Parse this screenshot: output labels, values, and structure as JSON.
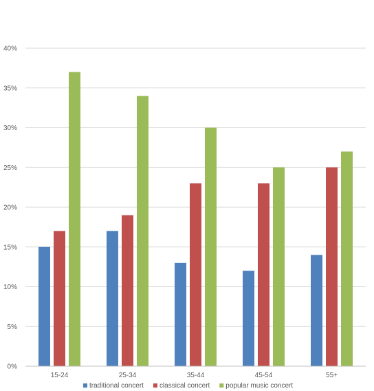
{
  "chart_data": {
    "type": "bar",
    "categories": [
      "15-24",
      "25-34",
      "35-44",
      "45-54",
      "55+"
    ],
    "series": [
      {
        "name": "traditional concert",
        "values": [
          15,
          17,
          13,
          12,
          14
        ],
        "color": "#4f81bd"
      },
      {
        "name": "classical concert",
        "values": [
          17,
          19,
          23,
          23,
          25
        ],
        "color": "#c0504d"
      },
      {
        "name": "popular music concert",
        "values": [
          37,
          34,
          30,
          25,
          27
        ],
        "color": "#9bbb59"
      }
    ],
    "ylim": [
      0,
      40
    ],
    "yticks": [
      0,
      5,
      10,
      15,
      20,
      25,
      30,
      35,
      40
    ],
    "ytick_format": "percent",
    "grid": true,
    "legend_position": "bottom",
    "title": "",
    "xlabel": "",
    "ylabel": ""
  }
}
